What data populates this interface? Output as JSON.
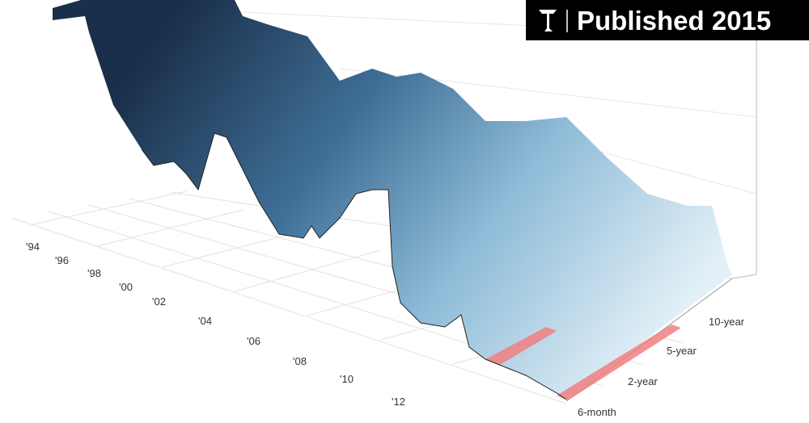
{
  "badge": {
    "text": "Published 2015"
  },
  "time_axis": {
    "labels": [
      "'94",
      "'96",
      "'98",
      "'00",
      "'02",
      "'04",
      "'06",
      "'08",
      "'10",
      "'12"
    ]
  },
  "maturity_axis": {
    "labels": [
      "6-month",
      "2-year",
      "5-year",
      "10-year"
    ]
  }
}
